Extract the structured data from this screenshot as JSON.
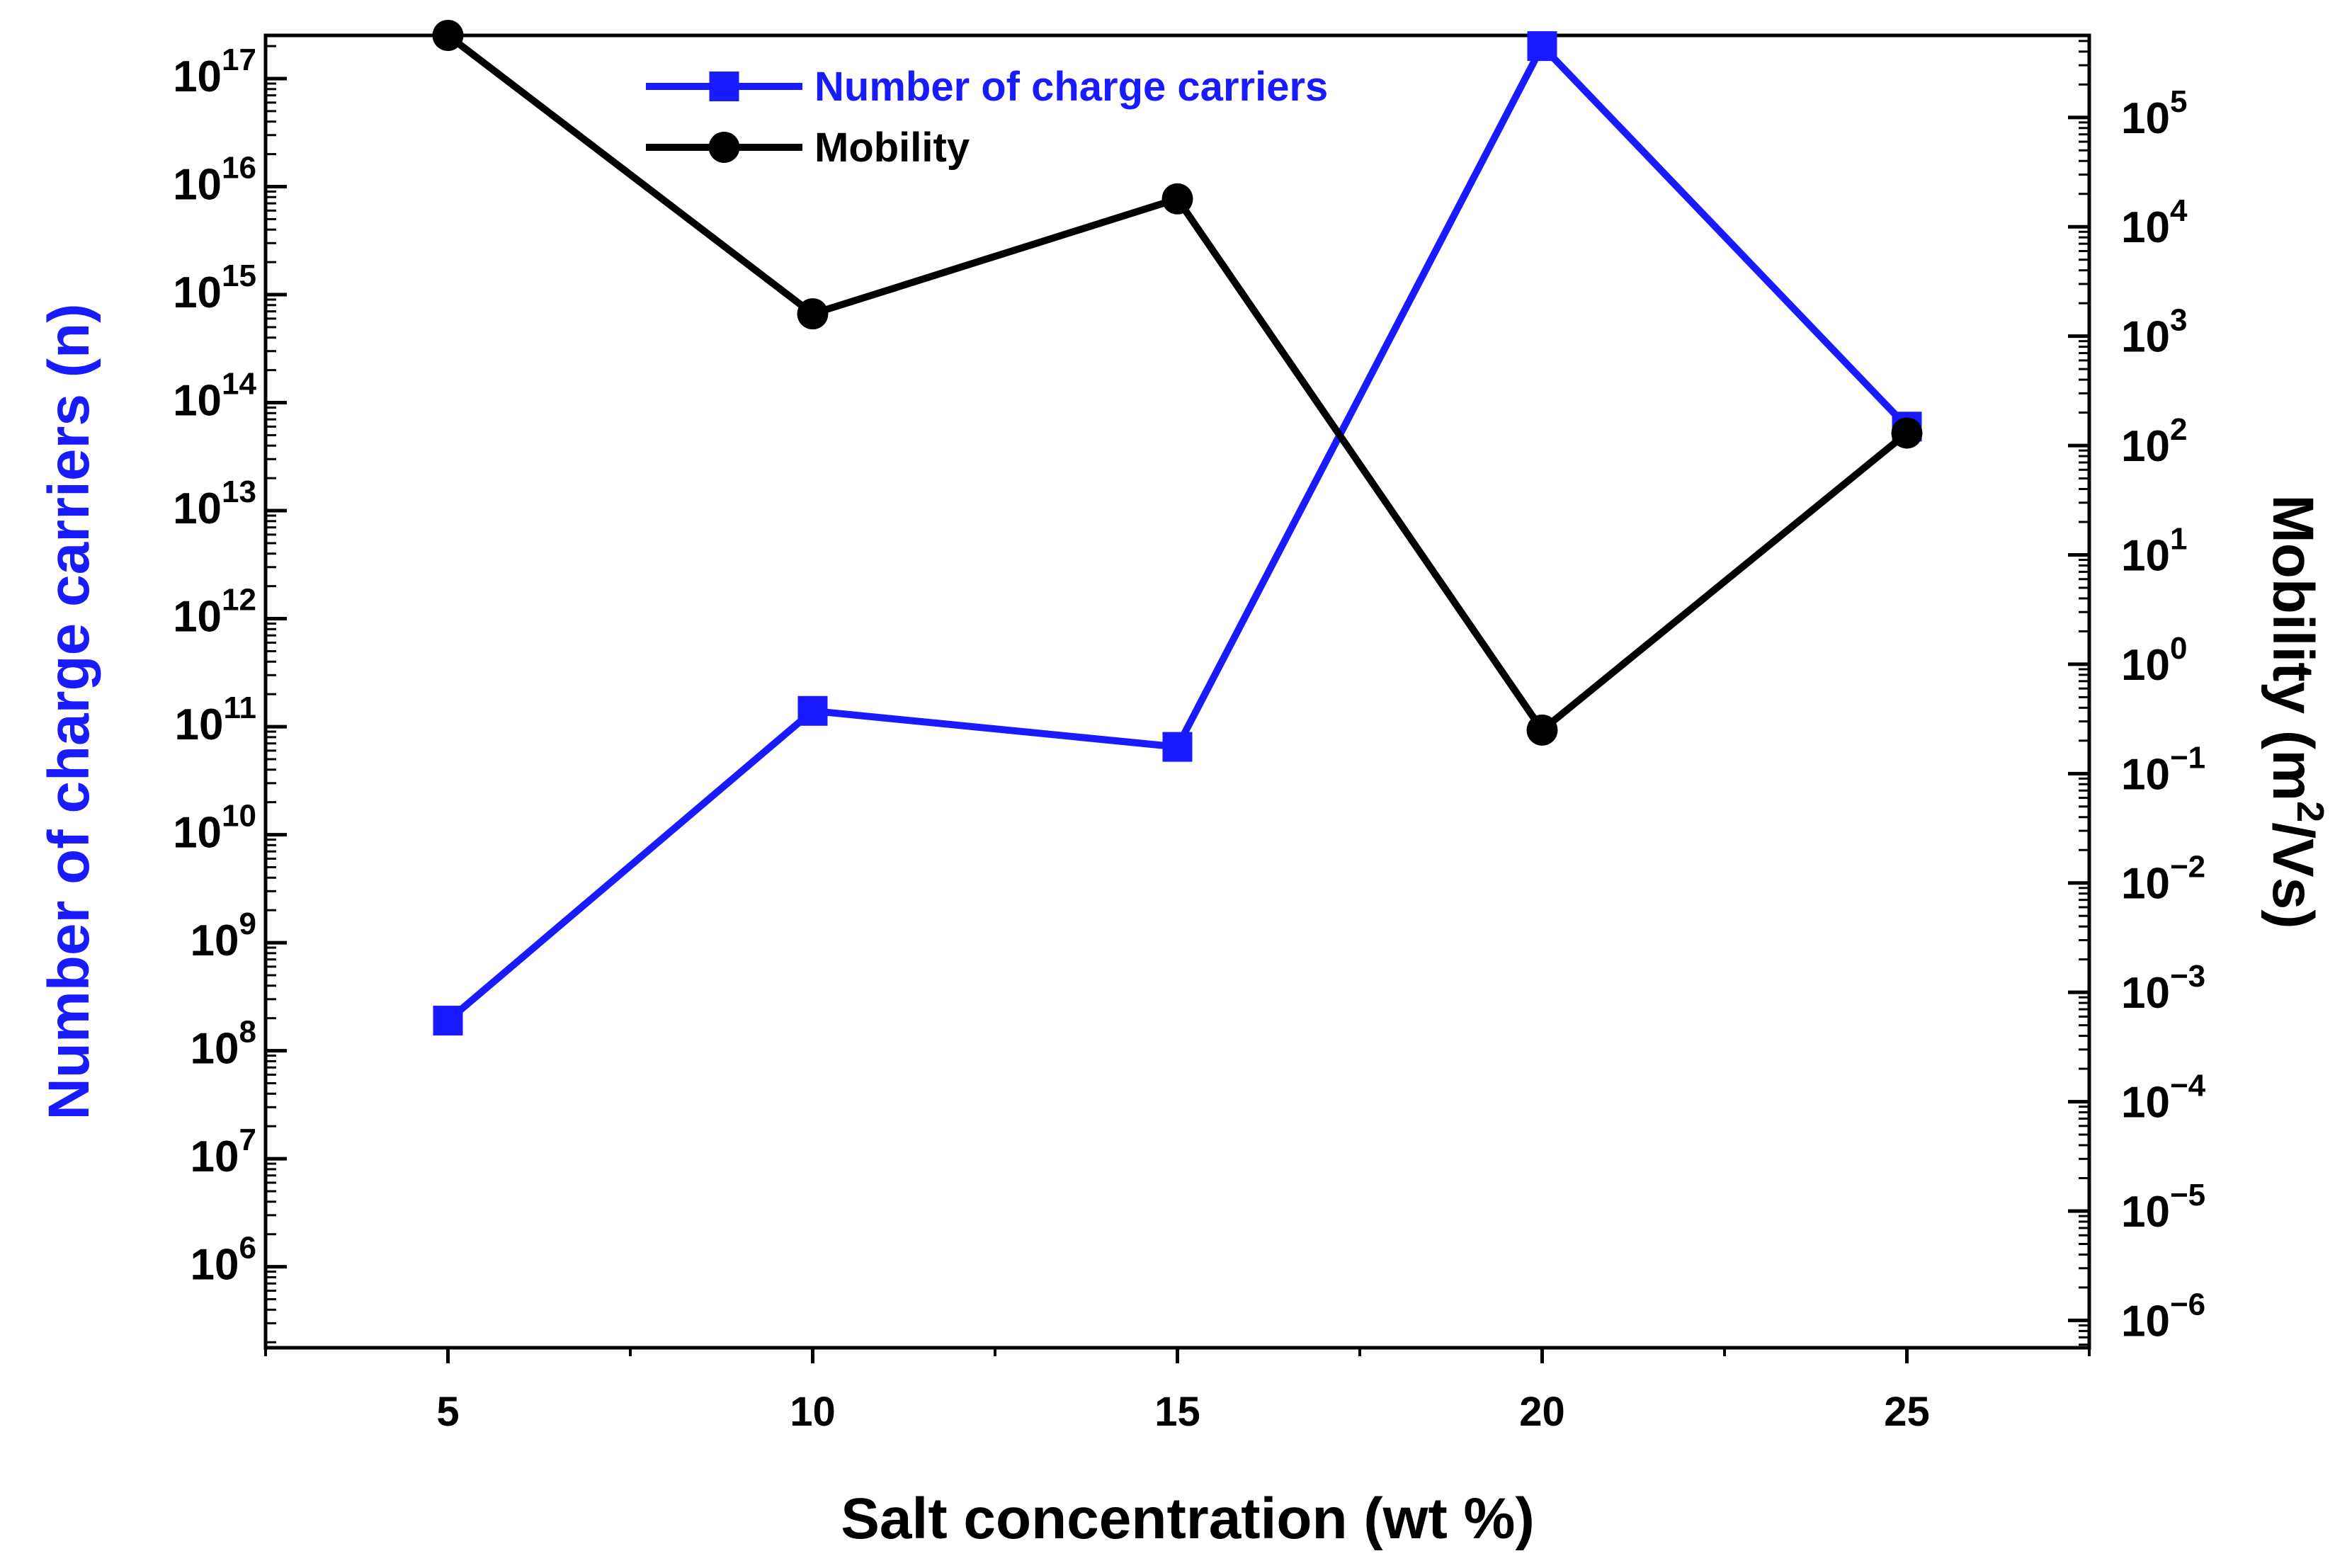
{
  "chart_data": {
    "type": "line",
    "xlabel": "Salt concentration (wt %)",
    "x_ticks": [
      "5",
      "10",
      "15",
      "20",
      "25"
    ],
    "xlim": [
      2.5,
      27.5
    ],
    "y_left": {
      "label": "Number of charge carriers (n)",
      "scale": "log",
      "range_exp": [
        5.25,
        17.4
      ],
      "tick_base": "10",
      "tick_exponents": [
        "6",
        "7",
        "8",
        "9",
        "10",
        "11",
        "12",
        "13",
        "14",
        "15",
        "16",
        "17"
      ],
      "color": "#1a1aff"
    },
    "y_right": {
      "label_main": "Mobility (m",
      "label_sup": "2",
      "label_end": "/Vs)",
      "scale": "log",
      "range_exp": [
        -6.25,
        5.75
      ],
      "tick_base": "10",
      "tick_exponents": [
        "−6",
        "−5",
        "−4",
        "−3",
        "−2",
        "−1",
        "0",
        "1",
        "2",
        "3",
        "4",
        "5"
      ],
      "color": "#000000"
    },
    "series": [
      {
        "name": "Number of charge carriers",
        "axis": "left",
        "marker": "square",
        "color": "#1a1aff",
        "x": [
          5,
          10,
          15,
          20,
          25
        ],
        "values": [
          190000000.0,
          140000000000.0,
          65000000000.0,
          2e+17,
          60000000000000.0
        ]
      },
      {
        "name": "Mobility",
        "axis": "right",
        "marker": "circle",
        "color": "#000000",
        "x": [
          5,
          10,
          15,
          20,
          25
        ],
        "values": [
          600000.0,
          1600.0,
          18000.0,
          0.25,
          130
        ]
      }
    ],
    "legend": {
      "position": "top-center",
      "entries": [
        "Number of charge carriers",
        "Mobility"
      ]
    }
  }
}
